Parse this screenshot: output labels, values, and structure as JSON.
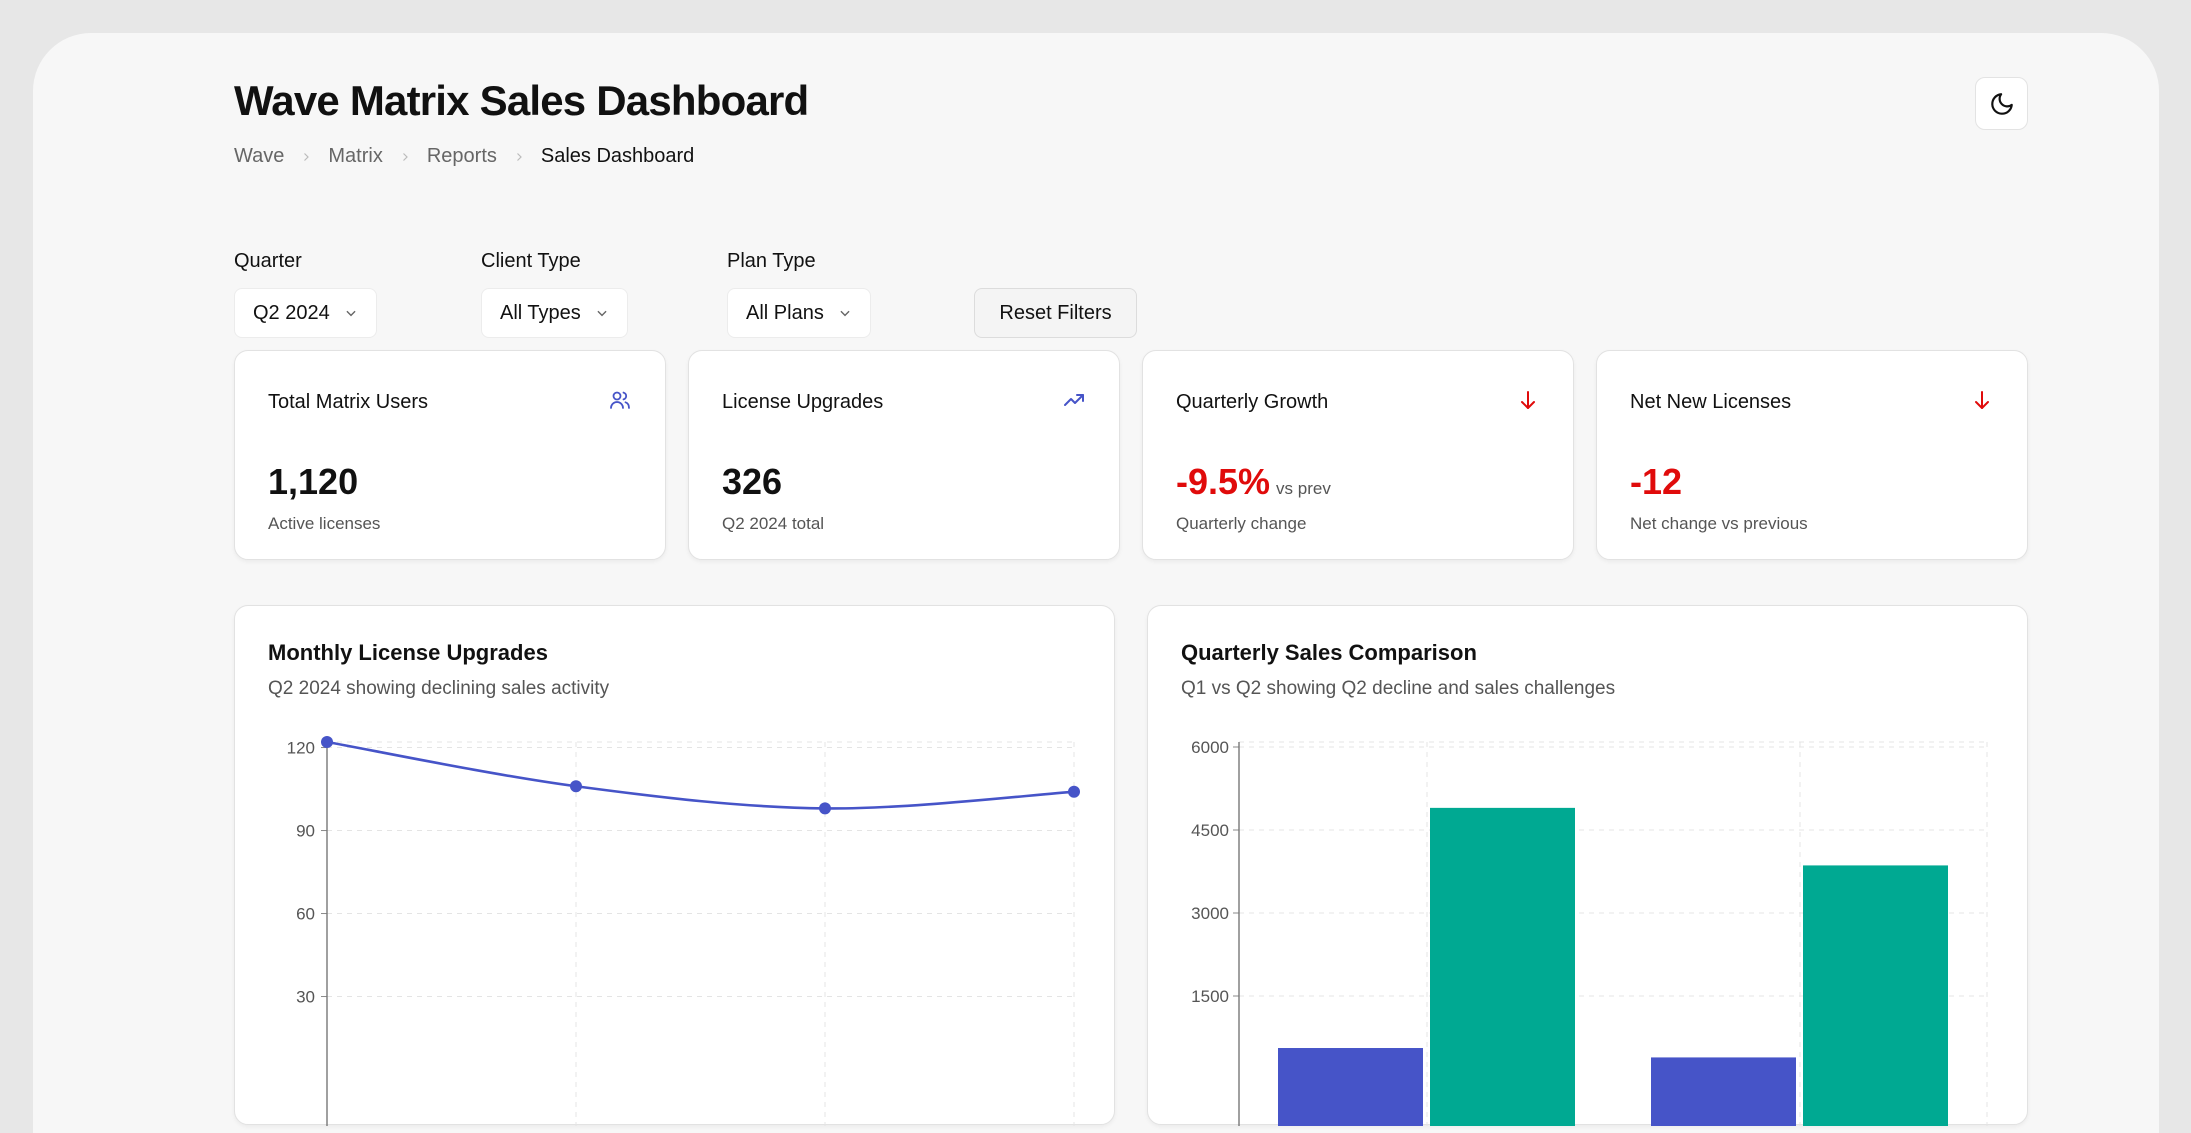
{
  "header": {
    "title": "Wave Matrix Sales Dashboard",
    "breadcrumb": [
      "Wave",
      "Matrix",
      "Reports",
      "Sales Dashboard"
    ]
  },
  "filters": {
    "quarter": {
      "label": "Quarter",
      "value": "Q2 2024"
    },
    "client_type": {
      "label": "Client Type",
      "value": "All Types"
    },
    "plan_type": {
      "label": "Plan Type",
      "value": "All Plans"
    },
    "reset_label": "Reset Filters"
  },
  "kpis": [
    {
      "title": "Total Matrix Users",
      "value": "1,120",
      "sub": "Active licenses",
      "icon": "users-icon"
    },
    {
      "title": "License Upgrades",
      "value": "326",
      "sub": "Q2 2024 total",
      "icon": "trending-up-icon"
    },
    {
      "title": "Quarterly Growth",
      "value": "-9.5%",
      "vs": "vs prev",
      "sub": "Quarterly change",
      "icon": "arrow-down-icon"
    },
    {
      "title": "Net New Licenses",
      "value": "-12",
      "sub": "Net change vs previous",
      "icon": "arrow-down-icon"
    }
  ],
  "colors": {
    "accent": "#4654c8",
    "teal": "#00a992",
    "negative": "#e00b0b"
  },
  "charts": {
    "line": {
      "title": "Monthly License Upgrades",
      "subtitle": "Q2 2024 showing declining sales activity"
    },
    "bar": {
      "title": "Quarterly Sales Comparison",
      "subtitle": "Q1 vs Q2 showing Q2 decline and sales challenges"
    }
  },
  "chart_data": [
    {
      "type": "line",
      "title": "Monthly License Upgrades",
      "subtitle": "Q2 2024 showing declining sales activity",
      "x": [
        0,
        1,
        2,
        3
      ],
      "values": [
        122,
        106,
        98,
        104
      ],
      "yticks": [
        "120",
        "90",
        "60",
        "30"
      ],
      "ytick_values": [
        120,
        90,
        60,
        30
      ],
      "ylim": [
        0,
        122
      ],
      "grid": true
    },
    {
      "type": "bar",
      "title": "Quarterly Sales Comparison",
      "subtitle": "Q1 vs Q2 showing Q2 decline and sales challenges",
      "series": [
        {
          "name": "series-1",
          "color": "#4654c8",
          "values": [
            560,
            390
          ]
        },
        {
          "name": "series-2",
          "color": "#00a992",
          "values": [
            4900,
            3860
          ]
        }
      ],
      "yticks": [
        "6000",
        "4500",
        "3000",
        "1500"
      ],
      "ytick_values": [
        6000,
        4500,
        3000,
        1500
      ],
      "ylim": [
        0,
        6000
      ],
      "grid": true
    }
  ]
}
